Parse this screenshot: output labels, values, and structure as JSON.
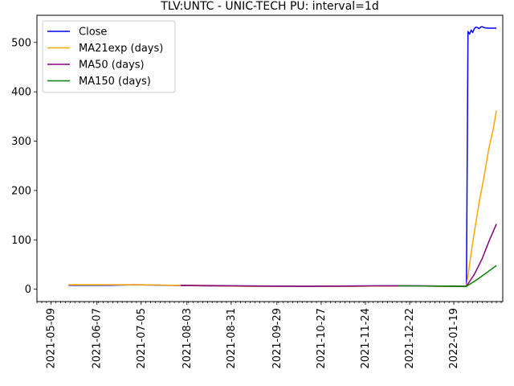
{
  "chart_data": {
    "type": "line",
    "title": "TLV:UNTC - UNIC-TECH PU: interval=1d",
    "xlabel": "",
    "ylabel": "",
    "xlim": [
      "2021-04-30",
      "2022-02-19"
    ],
    "ylim": [
      -25,
      555
    ],
    "grid": false,
    "legend_position": "upper-left",
    "x_tick_labels": [
      "2021-05-09",
      "2021-06-07",
      "2021-07-05",
      "2021-08-03",
      "2021-08-31",
      "2021-09-29",
      "2021-10-27",
      "2021-11-24",
      "2021-12-22",
      "2022-01-19"
    ],
    "y_ticks": [
      0,
      100,
      200,
      300,
      400,
      500
    ],
    "series": [
      {
        "name": "Close",
        "color": "#0000ff",
        "points": [
          [
            "2021-05-20",
            8
          ],
          [
            "2021-06-15",
            8
          ],
          [
            "2021-07-01",
            9
          ],
          [
            "2021-07-20",
            8
          ],
          [
            "2021-08-10",
            7
          ],
          [
            "2021-09-15",
            6
          ],
          [
            "2021-11-15",
            6
          ],
          [
            "2021-12-20",
            7
          ],
          [
            "2022-01-09",
            6
          ],
          [
            "2022-01-27",
            6
          ],
          [
            "2022-01-28",
            522
          ],
          [
            "2022-01-29",
            517
          ],
          [
            "2022-01-30",
            525
          ],
          [
            "2022-01-31",
            520
          ],
          [
            "2022-02-01",
            528
          ],
          [
            "2022-02-02",
            531
          ],
          [
            "2022-02-03",
            530
          ],
          [
            "2022-02-04",
            528
          ],
          [
            "2022-02-05",
            531
          ],
          [
            "2022-02-06",
            532
          ],
          [
            "2022-02-07",
            530
          ],
          [
            "2022-02-09",
            529
          ],
          [
            "2022-02-12",
            529
          ],
          [
            "2022-02-15",
            529
          ]
        ]
      },
      {
        "name": "MA21exp (days)",
        "color": "#ffa500",
        "points": [
          [
            "2021-05-20",
            9
          ],
          [
            "2021-06-15",
            9
          ],
          [
            "2021-07-05",
            9
          ],
          [
            "2021-07-25",
            8
          ],
          [
            "2021-08-15",
            7
          ],
          [
            "2021-09-15",
            6
          ],
          [
            "2021-11-15",
            6
          ],
          [
            "2021-12-20",
            7
          ],
          [
            "2022-01-09",
            6
          ],
          [
            "2022-01-27",
            6
          ],
          [
            "2022-01-31",
            95
          ],
          [
            "2022-02-04",
            175
          ],
          [
            "2022-02-07",
            225
          ],
          [
            "2022-02-10",
            282
          ],
          [
            "2022-02-13",
            325
          ],
          [
            "2022-02-15",
            362
          ]
        ]
      },
      {
        "name": "MA50 (days)",
        "color": "#800080",
        "points": [
          [
            "2021-07-30",
            8
          ],
          [
            "2021-09-01",
            7
          ],
          [
            "2021-10-15",
            6
          ],
          [
            "2021-12-01",
            7
          ],
          [
            "2021-12-25",
            7
          ],
          [
            "2022-01-27",
            6
          ],
          [
            "2022-02-01",
            30
          ],
          [
            "2022-02-06",
            62
          ],
          [
            "2022-02-10",
            95
          ],
          [
            "2022-02-15",
            132
          ]
        ]
      },
      {
        "name": "MA150 (days)",
        "color": "#008000",
        "points": [
          [
            "2021-12-15",
            7
          ],
          [
            "2022-01-27",
            6
          ],
          [
            "2022-02-03",
            20
          ],
          [
            "2022-02-09",
            34
          ],
          [
            "2022-02-15",
            48
          ]
        ]
      }
    ]
  }
}
